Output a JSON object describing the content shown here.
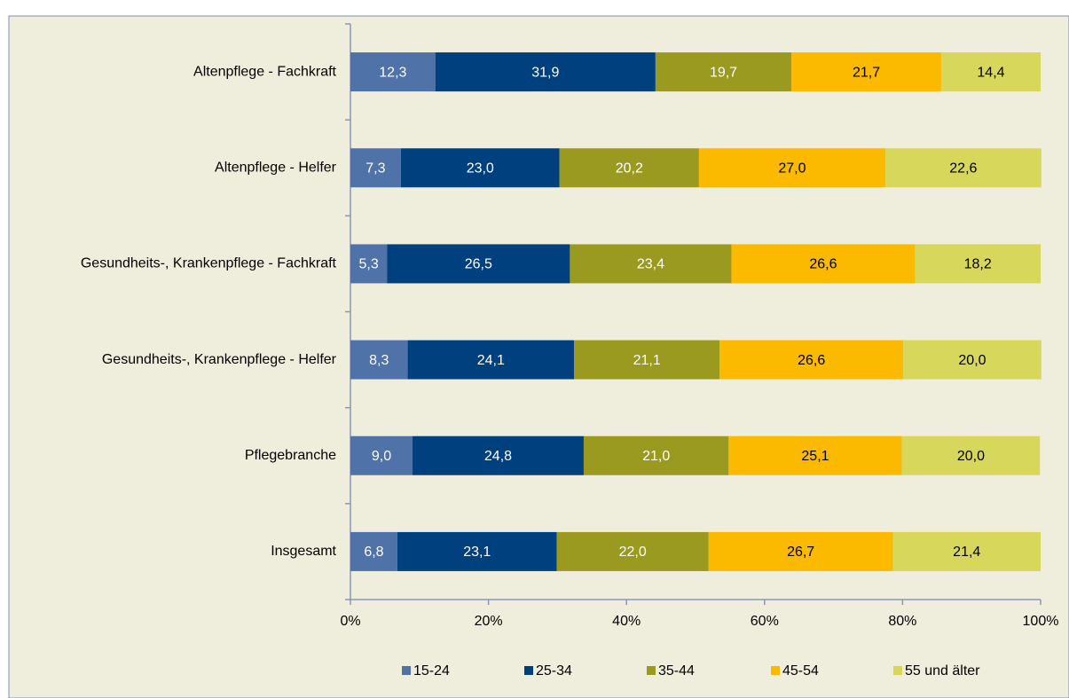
{
  "chart_data": {
    "type": "stacked_bar_horizontal",
    "categories": [
      "Altenpflege - Fachkraft",
      "Altenpflege - Helfer",
      "Gesundheits-, Krankenpflege - Fachkraft",
      "Gesundheits-, Krankenpflege - Helfer",
      "Pflegebranche",
      "Insgesamt"
    ],
    "series": [
      {
        "name": "15-24",
        "color": "#4f72a8",
        "values": [
          12.3,
          7.3,
          5.3,
          8.3,
          9.0,
          6.8
        ],
        "value_labels": [
          "12,3",
          "7,3",
          "5,3",
          "8,3",
          "9,0",
          "6,8"
        ]
      },
      {
        "name": "25-34",
        "color": "#00407f",
        "values": [
          31.9,
          23.0,
          26.5,
          24.1,
          24.8,
          23.1
        ],
        "value_labels": [
          "31,9",
          "23,0",
          "26,5",
          "24,1",
          "24,8",
          "23,1"
        ]
      },
      {
        "name": "35-44",
        "color": "#999a1f",
        "values": [
          19.7,
          20.2,
          23.4,
          21.1,
          21.0,
          22.0
        ],
        "value_labels": [
          "19,7",
          "20,2",
          "23,4",
          "21,1",
          "21,0",
          "22,0"
        ]
      },
      {
        "name": "45-54",
        "color": "#fbb900",
        "values": [
          21.7,
          27.0,
          26.6,
          26.6,
          25.1,
          26.7
        ],
        "value_labels": [
          "21,7",
          "27,0",
          "26,6",
          "26,6",
          "25,1",
          "26,7"
        ]
      },
      {
        "name": "55 und älter",
        "color": "#d6d75b",
        "values": [
          14.4,
          22.6,
          18.2,
          20.0,
          20.0,
          21.4
        ],
        "value_labels": [
          "14,4",
          "22,6",
          "18,2",
          "20,0",
          "20,0",
          "21,4"
        ]
      }
    ],
    "xlim": [
      0,
      100
    ],
    "xticks": [
      {
        "value": 0,
        "label": "0%"
      },
      {
        "value": 20,
        "label": "20%"
      },
      {
        "value": 40,
        "label": "40%"
      },
      {
        "value": 60,
        "label": "60%"
      },
      {
        "value": 80,
        "label": "80%"
      },
      {
        "value": 100,
        "label": "100%"
      }
    ],
    "legend": "bottom"
  }
}
